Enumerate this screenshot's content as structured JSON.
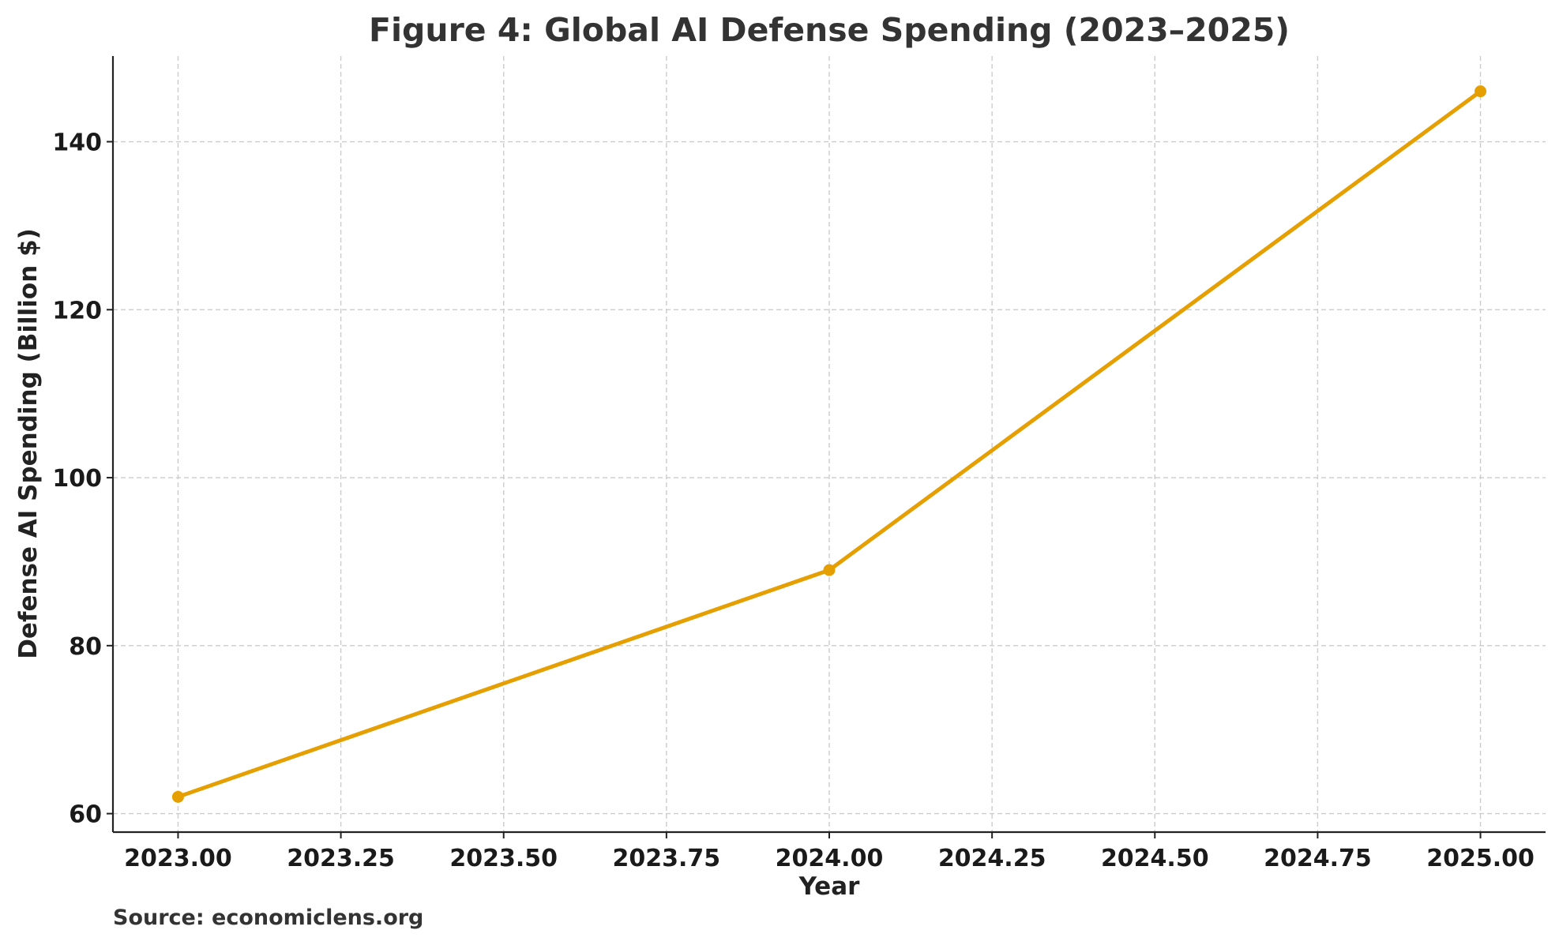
{
  "chart_data": {
    "type": "line",
    "title": "Figure 4: Global AI Defense Spending (2023–2025)",
    "xlabel": "Year",
    "ylabel": "Defense AI Spending (Billion $)",
    "x": [
      2023,
      2024,
      2025
    ],
    "series": [
      {
        "name": "Defense AI Spending",
        "values": [
          62,
          89,
          146
        ],
        "color": "#e69f00"
      }
    ],
    "xlim": [
      2022.9,
      2025.1
    ],
    "ylim": [
      57.8,
      150.2
    ],
    "xticks": [
      2023.0,
      2023.25,
      2023.5,
      2023.75,
      2024.0,
      2024.25,
      2024.5,
      2024.75,
      2025.0
    ],
    "xtick_labels": [
      "2023.00",
      "2023.25",
      "2023.50",
      "2023.75",
      "2024.00",
      "2024.25",
      "2024.50",
      "2024.75",
      "2025.00"
    ],
    "yticks": [
      60,
      80,
      100,
      120,
      140
    ],
    "ytick_labels": [
      "60",
      "80",
      "100",
      "120",
      "140"
    ],
    "grid": true,
    "source": "Source: economiclens.org"
  }
}
